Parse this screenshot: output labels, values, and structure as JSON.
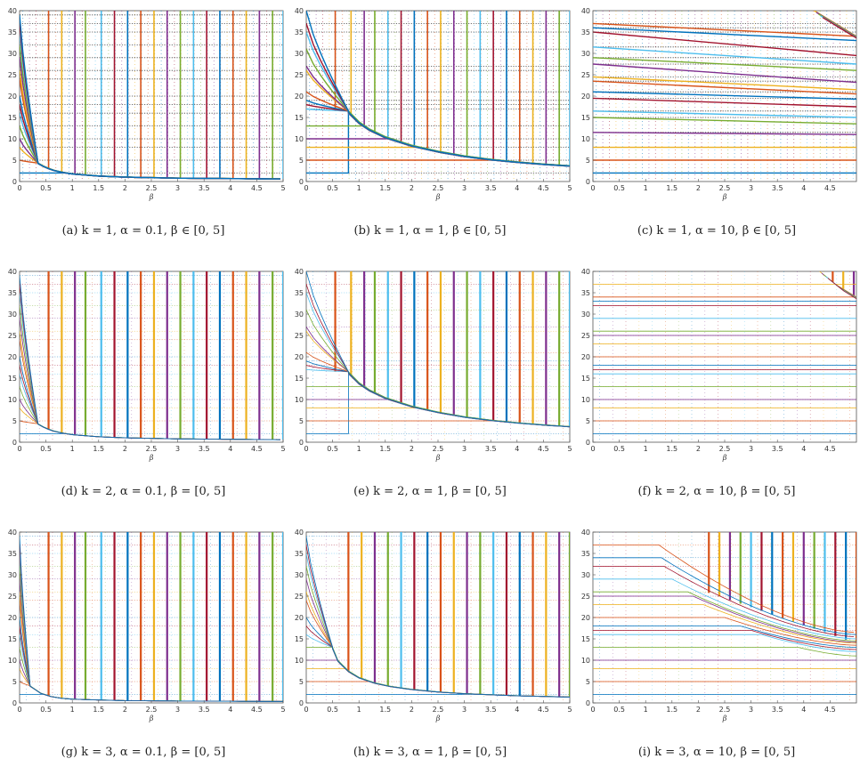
{
  "colors": [
    "#0072BD",
    "#D95319",
    "#EDB120",
    "#7E2F8E",
    "#77AC30",
    "#4DBEEE",
    "#A2142F"
  ],
  "chart_data": [
    {
      "id": "a",
      "type": "line",
      "caption": "(a)  k = 1, α = 0.1, β ∈ [0, 5]",
      "xlabel": "β",
      "ylabel": "",
      "xlim": [
        0,
        5
      ],
      "ylim": [
        0,
        40
      ],
      "xticks": [
        "0",
        "0.5",
        "1",
        "1.5",
        "2",
        "2.5",
        "3",
        "3.5",
        "4",
        "4.5",
        "5"
      ],
      "yticks": [
        "0",
        "5",
        "10",
        "15",
        "20",
        "25",
        "30",
        "35",
        "40"
      ],
      "style": "collapse",
      "collapse_beta": 0.35,
      "line_width": 1.4,
      "dense": true,
      "series_start": [
        2,
        5,
        8,
        10,
        13,
        16,
        18,
        20,
        24,
        26,
        29,
        32,
        35,
        37,
        39
      ],
      "curve": {
        "x": [
          0.2,
          0.4,
          0.6,
          0.8,
          1.0,
          1.5,
          2.0,
          3.0,
          4.0,
          5.0
        ],
        "y": [
          5.6,
          3.9,
          2.8,
          2.2,
          1.8,
          1.3,
          1.05,
          0.8,
          0.7,
          0.6
        ]
      },
      "vline_x": [
        0.55,
        0.8,
        1.05,
        1.25,
        1.55,
        1.8,
        2.05,
        2.3,
        2.55,
        2.8,
        3.05,
        3.3,
        3.55,
        3.8,
        4.05,
        4.3,
        4.55,
        4.8,
        5.0
      ]
    },
    {
      "id": "b",
      "type": "line",
      "caption": "(b)  k = 1, α = 1, β ∈ [0, 5]",
      "xlabel": "β",
      "ylabel": "",
      "xlim": [
        0,
        5
      ],
      "ylim": [
        0,
        40
      ],
      "xticks": [
        "0",
        "0.5",
        "1",
        "1.5",
        "2",
        "2.5",
        "3",
        "3.5",
        "4",
        "4.5",
        "5"
      ],
      "yticks": [
        "0",
        "5",
        "10",
        "15",
        "20",
        "25",
        "30",
        "35",
        "40"
      ],
      "style": "collapse",
      "collapse_beta": 0.8,
      "line_width": 1.4,
      "dense": true,
      "series_start": [
        2,
        5,
        8,
        10,
        13,
        17,
        18,
        19,
        21,
        26,
        27,
        31,
        35,
        37,
        40
      ],
      "curve": {
        "x": [
          0.8,
          1.0,
          1.2,
          1.5,
          2.0,
          2.5,
          3.0,
          3.5,
          4.0,
          4.5,
          5.0
        ],
        "y": [
          16.5,
          14.0,
          12.3,
          10.5,
          8.5,
          7.1,
          6.0,
          5.2,
          4.6,
          4.1,
          3.7
        ]
      },
      "vline_x": [
        0.55,
        0.85,
        1.1,
        1.3,
        1.55,
        1.8,
        2.05,
        2.3,
        2.55,
        2.8,
        3.05,
        3.3,
        3.55,
        3.8,
        4.05,
        4.3,
        4.55,
        4.8,
        5.0
      ]
    },
    {
      "id": "c",
      "type": "line",
      "caption": "(c)  k = 1, α = 10, β ∈ [0, 5]",
      "xlabel": "β",
      "ylabel": "",
      "xlim": [
        0,
        5
      ],
      "ylim": [
        0,
        40
      ],
      "xticks": [
        "0",
        "0.5",
        "1",
        "1.5",
        "2",
        "2.5",
        "3",
        "3.5",
        "4",
        "4.5"
      ],
      "yticks": [
        "0",
        "5",
        "10",
        "15",
        "20",
        "25",
        "30",
        "35",
        "40"
      ],
      "style": "slope",
      "line_width": 1.4,
      "dense": true,
      "series_start": [
        2,
        5,
        8,
        11.5,
        15,
        16.5,
        19.5,
        21,
        23.5,
        24.5,
        27.5,
        29,
        31.5,
        35,
        36,
        37
      ],
      "series_end": [
        2,
        5,
        8,
        11,
        13.5,
        15,
        17.5,
        19.3,
        20.5,
        21.5,
        23.2,
        26,
        27.5,
        29.5,
        33,
        34
      ],
      "vline_x": [],
      "top_curve": {
        "x": [
          4.2,
          4.6,
          5.0
        ],
        "y": [
          40,
          37,
          34
        ]
      }
    },
    {
      "id": "d",
      "type": "line",
      "caption": "(d)  k = 2, α = 0.1, β = [0, 5]",
      "xlabel": "β",
      "ylabel": "",
      "xlim": [
        0,
        5
      ],
      "ylim": [
        0,
        40
      ],
      "xticks": [
        "0",
        "0.5",
        "1",
        "1.5",
        "2",
        "2.5",
        "3",
        "3.5",
        "4",
        "4.5",
        "5"
      ],
      "yticks": [
        "0",
        "5",
        "10",
        "15",
        "20",
        "25",
        "30",
        "35",
        "40"
      ],
      "style": "collapse",
      "collapse_beta": 0.35,
      "line_width": 0.8,
      "dense": false,
      "series_start": [
        2,
        5,
        8,
        10,
        13,
        16,
        18,
        20,
        24,
        26,
        29,
        32,
        35,
        37,
        39
      ],
      "curve": {
        "x": [
          0.2,
          0.4,
          0.6,
          0.8,
          1.0,
          1.5,
          2.0,
          3.0,
          4.0,
          5.0
        ],
        "y": [
          5.6,
          3.9,
          2.8,
          2.2,
          1.8,
          1.3,
          1.05,
          0.8,
          0.7,
          0.6
        ]
      },
      "vline_x": [
        0.55,
        0.8,
        1.05,
        1.25,
        1.55,
        1.8,
        2.05,
        2.3,
        2.55,
        2.8,
        3.05,
        3.3,
        3.55,
        3.8,
        4.05,
        4.3,
        4.55,
        4.8,
        5.0
      ]
    },
    {
      "id": "e",
      "type": "line",
      "caption": "(e)  k = 2, α = 1, β = [0, 5]",
      "xlabel": "β",
      "ylabel": "",
      "xlim": [
        0,
        5
      ],
      "ylim": [
        0,
        40
      ],
      "xticks": [
        "0",
        "0.5",
        "1",
        "1.5",
        "2",
        "2.5",
        "3",
        "3.5",
        "4",
        "4.5",
        "5"
      ],
      "yticks": [
        "0",
        "5",
        "10",
        "15",
        "20",
        "25",
        "30",
        "35",
        "40"
      ],
      "style": "collapse",
      "collapse_beta": 0.8,
      "line_width": 0.8,
      "dense": false,
      "series_start": [
        2,
        5,
        8,
        10,
        13,
        17,
        18,
        19,
        21,
        26,
        27,
        31,
        35,
        37,
        40
      ],
      "curve": {
        "x": [
          0.8,
          1.0,
          1.2,
          1.5,
          2.0,
          2.5,
          3.0,
          3.5,
          4.0,
          4.5,
          5.0
        ],
        "y": [
          16.5,
          14.0,
          12.3,
          10.5,
          8.5,
          7.1,
          6.0,
          5.2,
          4.6,
          4.1,
          3.7
        ]
      },
      "vline_x": [
        0.55,
        0.85,
        1.1,
        1.3,
        1.55,
        1.8,
        2.05,
        2.3,
        2.55,
        2.8,
        3.05,
        3.3,
        3.55,
        3.8,
        4.05,
        4.3,
        4.55,
        4.8,
        5.0
      ]
    },
    {
      "id": "f",
      "type": "line",
      "caption": "(f)  k = 2, α = 10, β = [0, 5]",
      "xlabel": "β",
      "ylabel": "",
      "xlim": [
        0,
        5
      ],
      "ylim": [
        0,
        40
      ],
      "xticks": [
        "0",
        "0.5",
        "1",
        "1.5",
        "2",
        "2.5",
        "3",
        "3.5",
        "4",
        "4.5"
      ],
      "yticks": [
        "0",
        "5",
        "10",
        "15",
        "20",
        "25",
        "30",
        "35",
        "40"
      ],
      "style": "flat",
      "line_width": 0.8,
      "dense": false,
      "series_start": [
        2,
        5,
        8,
        10,
        13,
        16,
        17,
        18,
        20,
        23,
        25,
        26,
        29,
        32,
        33,
        34,
        37
      ],
      "series_end": [
        2,
        5,
        8,
        10,
        13,
        16,
        17,
        18,
        20,
        23,
        25,
        26,
        29,
        32,
        33,
        34,
        37
      ],
      "vline_x": [
        4.55,
        4.75,
        4.95
      ],
      "top_curve": {
        "x": [
          4.3,
          4.6,
          5.0
        ],
        "y": [
          40,
          37,
          34
        ]
      }
    },
    {
      "id": "g",
      "type": "line",
      "caption": "(g)  k = 3, α = 0.1, β = [0, 5]",
      "xlabel": "β",
      "ylabel": "",
      "xlim": [
        0,
        5
      ],
      "ylim": [
        0,
        40
      ],
      "xticks": [
        "0",
        "0.5",
        "1",
        "1.5",
        "2",
        "2.5",
        "3",
        "3.5",
        "4",
        "4.5",
        "5"
      ],
      "yticks": [
        "0",
        "5",
        "10",
        "15",
        "20",
        "25",
        "30",
        "35",
        "40"
      ],
      "style": "collapse",
      "collapse_beta": 0.2,
      "line_width": 0.8,
      "dense": false,
      "series_start": [
        2,
        5,
        8,
        10,
        13,
        16,
        18,
        20,
        24,
        26,
        29,
        32,
        35,
        37,
        39
      ],
      "curve": {
        "x": [
          0.2,
          0.4,
          0.6,
          0.8,
          1.0,
          1.5,
          2.0,
          3.0,
          4.0,
          5.0
        ],
        "y": [
          4.0,
          2.3,
          1.5,
          1.1,
          0.9,
          0.7,
          0.55,
          0.45,
          0.4,
          0.35
        ]
      },
      "vline_x": [
        0.55,
        0.8,
        1.05,
        1.25,
        1.55,
        1.8,
        2.05,
        2.3,
        2.55,
        2.8,
        3.05,
        3.3,
        3.55,
        3.8,
        4.05,
        4.3,
        4.55,
        4.8,
        5.0
      ]
    },
    {
      "id": "h",
      "type": "line",
      "caption": "(h)  k = 3, α = 1, β = [0, 5]",
      "xlabel": "β",
      "ylabel": "",
      "xlim": [
        0,
        5
      ],
      "ylim": [
        0,
        40
      ],
      "xticks": [
        "0",
        "0.5",
        "1",
        "1.5",
        "2",
        "2.5",
        "3",
        "3.5",
        "4",
        "4.5",
        "5"
      ],
      "yticks": [
        "0",
        "5",
        "10",
        "15",
        "20",
        "25",
        "30",
        "35",
        "40"
      ],
      "style": "collapse",
      "collapse_beta": 0.5,
      "line_width": 0.8,
      "dense": false,
      "series_start": [
        2,
        5,
        8,
        10,
        13,
        16,
        18,
        20,
        24,
        26,
        29,
        32,
        35,
        37,
        39
      ],
      "curve": {
        "x": [
          0.5,
          0.6,
          0.8,
          1.0,
          1.3,
          1.6,
          2.0,
          2.5,
          3.0,
          4.0,
          5.0
        ],
        "y": [
          13.0,
          10.0,
          7.5,
          6.0,
          4.7,
          3.9,
          3.2,
          2.6,
          2.2,
          1.7,
          1.4
        ]
      },
      "vline_x": [
        0.8,
        1.05,
        1.3,
        1.55,
        1.8,
        2.05,
        2.3,
        2.55,
        2.8,
        3.05,
        3.3,
        3.55,
        3.8,
        4.05,
        4.3,
        4.55,
        4.8,
        5.0
      ]
    },
    {
      "id": "i",
      "type": "line",
      "caption": "(i)  k = 3, α = 10, β = [0, 5]",
      "xlabel": "β",
      "ylabel": "",
      "xlim": [
        0,
        5
      ],
      "ylim": [
        0,
        40
      ],
      "xticks": [
        "0",
        "0.5",
        "1",
        "1.5",
        "2",
        "2.5",
        "3",
        "3.5",
        "4",
        "4.5"
      ],
      "yticks": [
        "0",
        "5",
        "10",
        "15",
        "20",
        "25",
        "30",
        "35",
        "40"
      ],
      "style": "knee",
      "line_width": 0.8,
      "dense": false,
      "series_start": [
        2,
        5,
        8,
        10,
        13,
        16,
        17,
        18,
        20,
        23,
        25,
        26,
        29,
        32,
        34,
        37
      ],
      "knee_x": [
        5.0,
        5.0,
        5.0,
        4.6,
        3.9,
        3.2,
        3.0,
        2.8,
        2.5,
        2.1,
        1.9,
        1.8,
        1.5,
        1.35,
        1.3,
        1.25
      ],
      "series_end": [
        2,
        5,
        8,
        10,
        11,
        12,
        12.5,
        13,
        13.5,
        14,
        14.2,
        14.5,
        15,
        15.5,
        16,
        16.5
      ],
      "vline_x": [
        2.2,
        2.4,
        2.6,
        2.8,
        3.0,
        3.2,
        3.4,
        3.6,
        3.8,
        4.0,
        4.2,
        4.4,
        4.6,
        4.8,
        5.0
      ]
    }
  ]
}
